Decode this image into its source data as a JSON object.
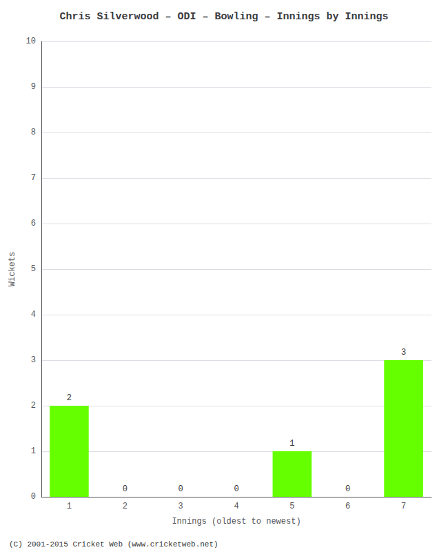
{
  "chart_data": {
    "type": "bar",
    "title": "Chris Silverwood – ODI – Bowling – Innings by Innings",
    "xlabel": "Innings (oldest to newest)",
    "ylabel": "Wickets",
    "categories": [
      "1",
      "2",
      "3",
      "4",
      "5",
      "6",
      "7"
    ],
    "values": [
      2,
      0,
      0,
      0,
      1,
      0,
      3
    ],
    "color": "#66ff00",
    "ylim": [
      0,
      10
    ],
    "yticks": [
      0,
      1,
      2,
      3,
      4,
      5,
      6,
      7,
      8,
      9,
      10
    ],
    "grid": true,
    "data_labels": true,
    "annotations": [
      "(C) 2001-2015 Cricket Web (www.cricketweb.net)"
    ]
  }
}
